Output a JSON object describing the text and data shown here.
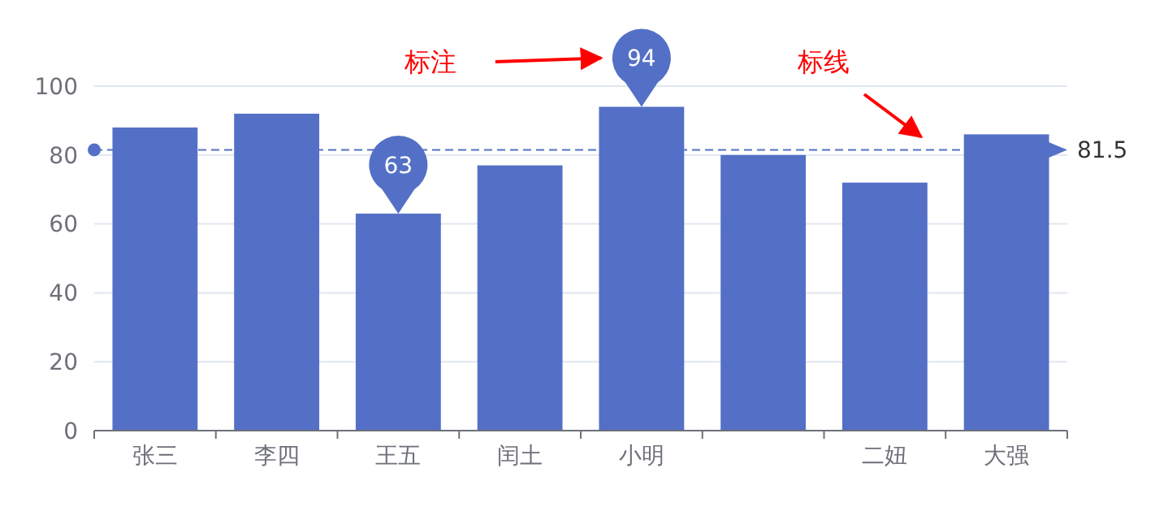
{
  "chart_data": {
    "type": "bar",
    "categories": [
      "张三",
      "李四",
      "王五",
      "闰土",
      "小明",
      null,
      "二妞",
      "大强"
    ],
    "values": [
      88,
      92,
      63,
      77,
      94,
      80,
      72,
      86
    ],
    "color": "#5470c6",
    "ylim": [
      0,
      100
    ],
    "yticks": [
      0,
      20,
      40,
      60,
      80,
      100
    ],
    "grid": "y",
    "ref_lines": [
      {
        "axis": "y",
        "value": 81.5,
        "label": "81.5",
        "color": "#5470c6",
        "line_style": "dashed"
      }
    ],
    "annotations": [
      {
        "text": "94",
        "x": "小明",
        "y": 94
      },
      {
        "text": "63",
        "x": "王五",
        "y": 63
      },
      "标注",
      "标线"
    ]
  }
}
